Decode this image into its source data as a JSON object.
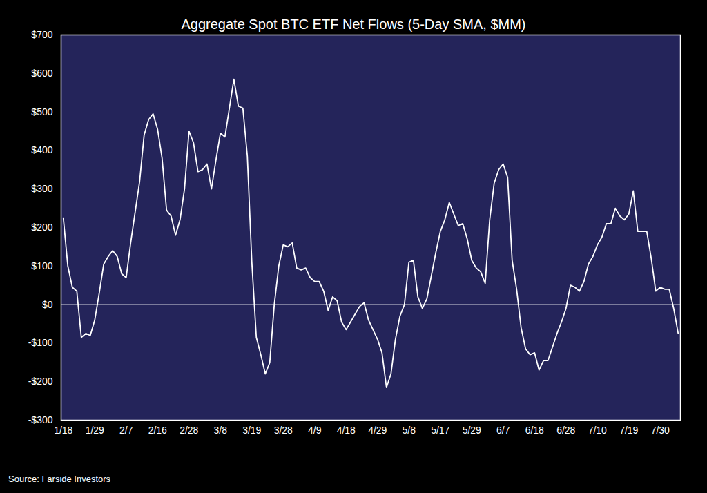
{
  "chart_data": {
    "type": "line",
    "title": "Aggregate Spot BTC ETF Net Flows (5-Day SMA, $MM)",
    "source": "Source: Farside Investors",
    "color": "#ffffff",
    "grid": false,
    "categories": [
      "1/18",
      null,
      null,
      null,
      null,
      null,
      null,
      "1/29",
      null,
      null,
      null,
      null,
      null,
      null,
      "2/7",
      null,
      null,
      null,
      null,
      null,
      null,
      "2/16",
      null,
      null,
      null,
      null,
      null,
      null,
      "2/28",
      null,
      null,
      null,
      null,
      null,
      null,
      "3/8",
      null,
      null,
      null,
      null,
      null,
      null,
      "3/19",
      null,
      null,
      null,
      null,
      null,
      null,
      "3/28",
      null,
      null,
      null,
      null,
      null,
      null,
      "4/9",
      null,
      null,
      null,
      null,
      null,
      null,
      "4/18",
      null,
      null,
      null,
      null,
      null,
      null,
      "4/29",
      null,
      null,
      null,
      null,
      null,
      null,
      "5/8",
      null,
      null,
      null,
      null,
      null,
      null,
      "5/17",
      null,
      null,
      null,
      null,
      null,
      null,
      "5/29",
      null,
      null,
      null,
      null,
      null,
      null,
      "6/7",
      null,
      null,
      null,
      null,
      null,
      null,
      "6/18",
      null,
      null,
      null,
      null,
      null,
      null,
      "6/28",
      null,
      null,
      null,
      null,
      null,
      null,
      "7/10",
      null,
      null,
      null,
      null,
      null,
      null,
      "7/19",
      null,
      null,
      null,
      null,
      null,
      null,
      "7/30",
      null,
      null,
      null,
      null
    ],
    "values": [
      225,
      100,
      45,
      35,
      -85,
      -75,
      -80,
      -40,
      30,
      105,
      125,
      140,
      125,
      80,
      70,
      160,
      240,
      320,
      440,
      480,
      495,
      455,
      380,
      245,
      230,
      180,
      220,
      300,
      450,
      420,
      345,
      350,
      365,
      300,
      375,
      445,
      435,
      510,
      585,
      515,
      510,
      385,
      110,
      -85,
      -130,
      -180,
      -150,
      0,
      100,
      155,
      150,
      160,
      95,
      90,
      95,
      70,
      60,
      60,
      35,
      -15,
      20,
      10,
      -45,
      -65,
      -45,
      -25,
      -5,
      5,
      -40,
      -65,
      -90,
      -125,
      -215,
      -180,
      -90,
      -30,
      0,
      110,
      115,
      20,
      -10,
      15,
      75,
      135,
      190,
      220,
      265,
      235,
      205,
      210,
      170,
      115,
      95,
      85,
      55,
      220,
      315,
      350,
      365,
      330,
      115,
      40,
      -60,
      -115,
      -130,
      -125,
      -170,
      -145,
      -145,
      -110,
      -75,
      -45,
      -10,
      50,
      45,
      35,
      60,
      105,
      125,
      155,
      175,
      210,
      210,
      250,
      230,
      220,
      235,
      295,
      190,
      190,
      190,
      120,
      35,
      45,
      40,
      40,
      -10,
      -75
    ],
    "ylim": [
      -300,
      700
    ],
    "yticks": [
      {
        "value": 700,
        "label": "$700"
      },
      {
        "value": 600,
        "label": "$600"
      },
      {
        "value": 500,
        "label": "$500"
      },
      {
        "value": 400,
        "label": "$400"
      },
      {
        "value": 300,
        "label": "$300"
      },
      {
        "value": 200,
        "label": "$200"
      },
      {
        "value": 100,
        "label": "$100"
      },
      {
        "value": 0,
        "label": "$0"
      },
      {
        "value": -100,
        "label": "-$100"
      },
      {
        "value": -200,
        "label": "-$200"
      },
      {
        "value": -300,
        "label": "-$300"
      }
    ]
  }
}
